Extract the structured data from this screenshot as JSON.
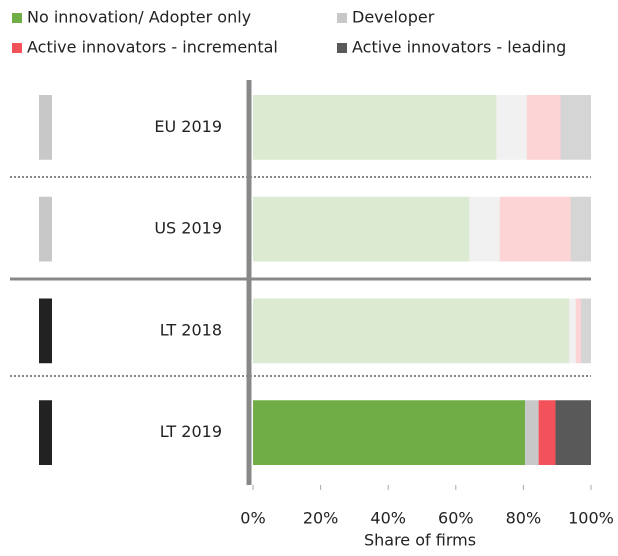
{
  "chart_data": {
    "type": "stacked_barh",
    "categories": [
      "EU 2019",
      "US 2019",
      "LT 2018",
      "LT 2019"
    ],
    "highlighted": [
      false,
      false,
      false,
      true
    ],
    "indicator_colors": [
      "#c8c8c8",
      "#c8c8c8",
      "#222222",
      "#222222"
    ],
    "series": [
      {
        "name": "No innovation/ Adopter only",
        "color": "#70ad47",
        "values": [
          72,
          64,
          93.5,
          80.5
        ]
      },
      {
        "name": "Developer",
        "color": "#c8c8c8",
        "values": [
          9,
          9,
          2,
          4
        ]
      },
      {
        "name": "Active innovators - incremental",
        "color": "#f4525b",
        "values": [
          10,
          21,
          1.5,
          5
        ]
      },
      {
        "name": "Active innovators - leading",
        "color": "#595959",
        "values": [
          9,
          6,
          3,
          10.5
        ]
      }
    ],
    "xlim": [
      0,
      100
    ],
    "xticks": [
      {
        "value": 0,
        "label": "0%"
      },
      {
        "value": 20,
        "label": "20%"
      },
      {
        "value": 40,
        "label": "40%"
      },
      {
        "value": 60,
        "label": "60%"
      },
      {
        "value": 80,
        "label": "80%"
      },
      {
        "value": 100,
        "label": "100%"
      }
    ],
    "xlabel": "Share of firms"
  }
}
